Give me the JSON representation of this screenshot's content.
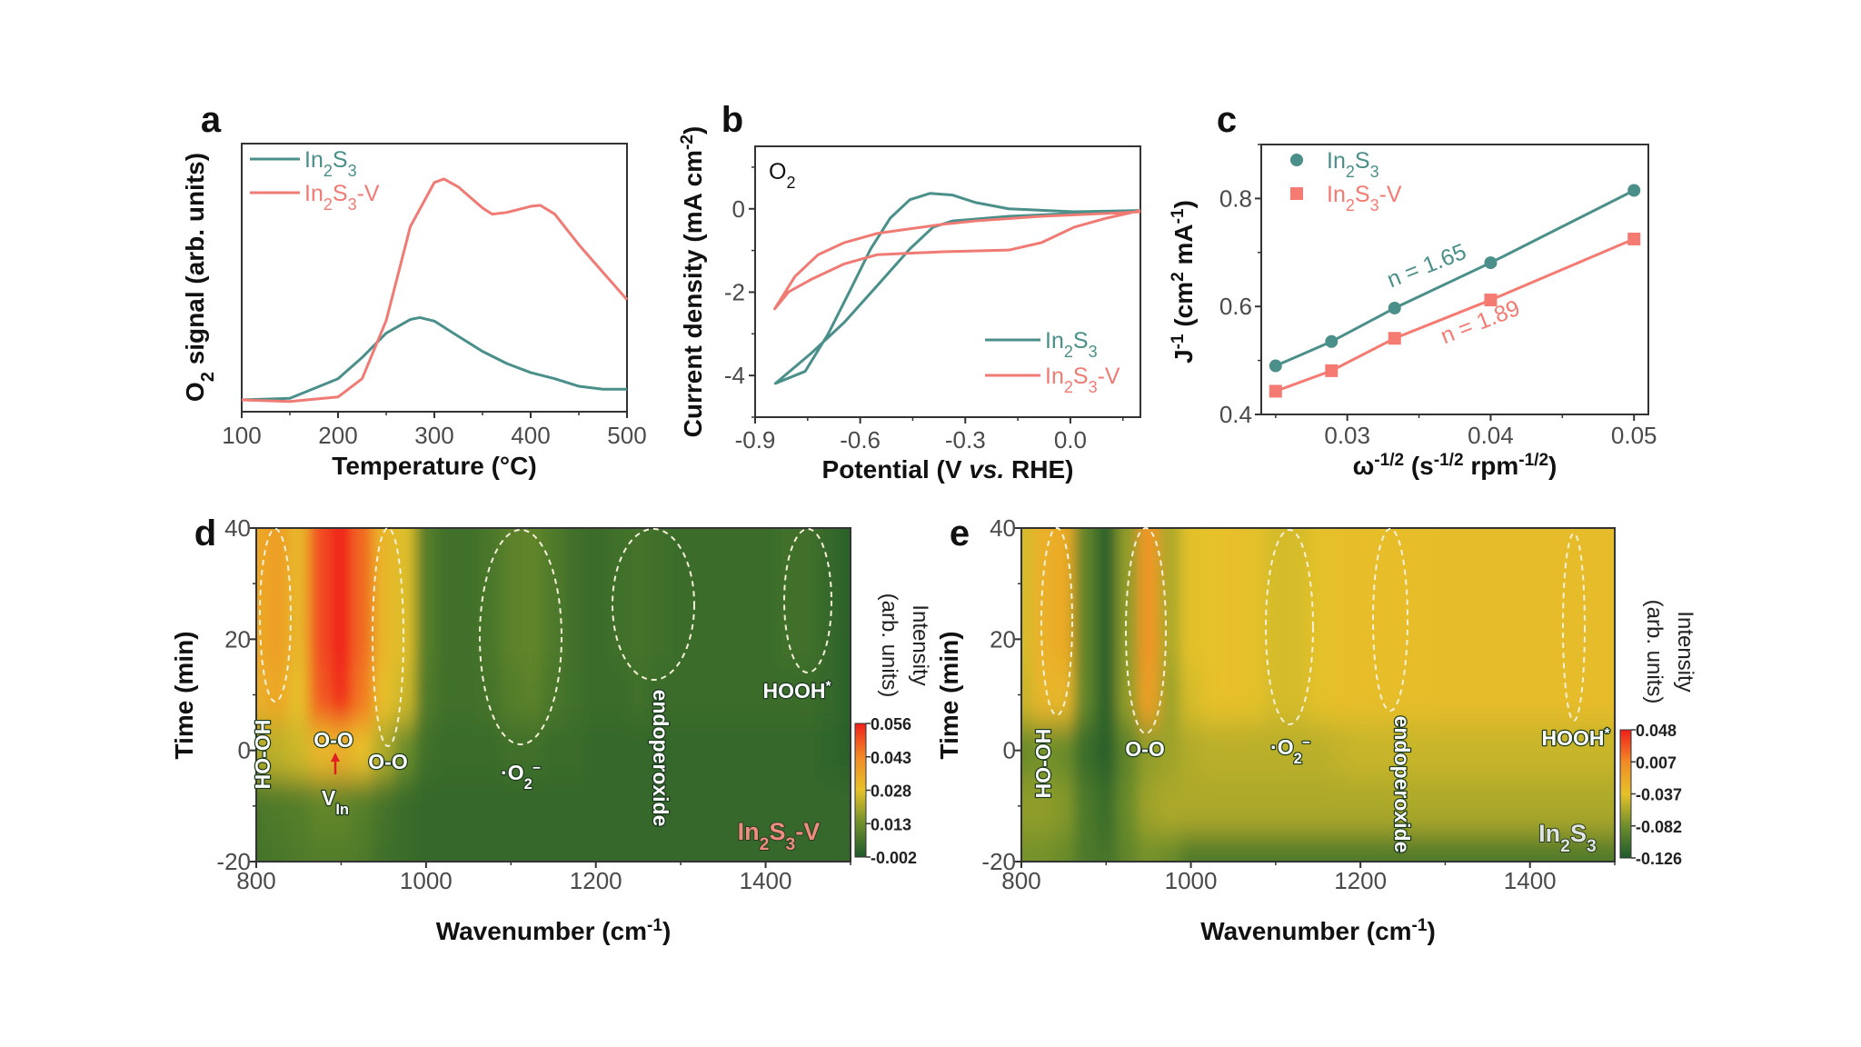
{
  "figure": {
    "panel_labels": [
      "a",
      "b",
      "c",
      "d",
      "e"
    ]
  },
  "colors": {
    "In2S3": "#4a8f8a",
    "In2S3-V": "#f07a74"
  },
  "chart_data": [
    {
      "panel": "a",
      "type": "line",
      "xlabel": "Temperature (°C)",
      "ylabel": "O2 signal (arb. units)",
      "xlim": [
        100,
        500
      ],
      "ylim": [
        0,
        1
      ],
      "xticks": [
        "100",
        "200",
        "300",
        "400",
        "500"
      ],
      "yticks": [],
      "grid": false,
      "legend": "top-left",
      "series": [
        {
          "name": "In2S3",
          "color": "#4a8f8a",
          "x": [
            100,
            150,
            200,
            225,
            250,
            275,
            285,
            300,
            325,
            350,
            375,
            400,
            425,
            450,
            475,
            500
          ],
          "y": [
            0.044,
            0.05,
            0.123,
            0.202,
            0.293,
            0.344,
            0.351,
            0.338,
            0.281,
            0.225,
            0.18,
            0.146,
            0.123,
            0.095,
            0.084,
            0.084
          ]
        },
        {
          "name": "In2S3-V",
          "color": "#f07a74",
          "x": [
            100,
            150,
            200,
            225,
            250,
            275,
            300,
            310,
            325,
            350,
            360,
            375,
            400,
            410,
            425,
            450,
            475,
            500
          ],
          "y": [
            0.044,
            0.038,
            0.055,
            0.123,
            0.34,
            0.69,
            0.855,
            0.868,
            0.838,
            0.76,
            0.737,
            0.743,
            0.766,
            0.77,
            0.737,
            0.623,
            0.52,
            0.418
          ]
        }
      ]
    },
    {
      "panel": "b",
      "type": "line",
      "xlabel": "Potential (V vs. RHE)",
      "ylabel": "Current density (mA cm-2)",
      "xlim": [
        -0.9,
        0.2
      ],
      "ylim": [
        -5,
        1.5
      ],
      "xticks": [
        "-0.9",
        "-0.6",
        "-0.3",
        "0.0"
      ],
      "yticks": [
        "0",
        "-2",
        "-4"
      ],
      "annotation": "O2",
      "grid": false,
      "legend": "bottom-right",
      "series": [
        {
          "name": "In2S3",
          "color": "#4a8f8a",
          "x": [
            0.2,
            0.011,
            -0.176,
            -0.27,
            -0.336,
            -0.401,
            -0.458,
            -0.514,
            -0.57,
            -0.626,
            -0.692,
            -0.757,
            -0.842,
            -0.739,
            -0.645,
            -0.551,
            -0.458,
            -0.392,
            -0.336,
            -0.176,
            0.011,
            0.2
          ],
          "y": [
            -0.04,
            -0.07,
            0.0,
            0.15,
            0.33,
            0.37,
            0.22,
            -0.22,
            -0.96,
            -1.91,
            -3.01,
            -3.9,
            -4.19,
            -3.46,
            -2.72,
            -1.84,
            -0.96,
            -0.44,
            -0.29,
            -0.18,
            -0.11,
            -0.06
          ]
        },
        {
          "name": "In2S3-V",
          "color": "#f07a74",
          "x": [
            0.2,
            0.105,
            0.011,
            -0.082,
            -0.176,
            -0.364,
            -0.551,
            -0.645,
            -0.739,
            -0.804,
            -0.844,
            -0.786,
            -0.72,
            -0.645,
            -0.551,
            -0.458,
            -0.364,
            -0.27,
            -0.082,
            0.105,
            0.2
          ],
          "y": [
            -0.04,
            -0.22,
            -0.44,
            -0.81,
            -0.99,
            -1.03,
            -1.1,
            -1.32,
            -1.69,
            -1.99,
            -2.4,
            -1.62,
            -1.1,
            -0.81,
            -0.59,
            -0.48,
            -0.37,
            -0.29,
            -0.18,
            -0.11,
            -0.07
          ]
        }
      ]
    },
    {
      "panel": "c",
      "type": "scatter",
      "xlabel": "ω-1/2 (s-1/2 rpm-1/2)",
      "ylabel": "J-1 (cm2 mA-1)",
      "xlim": [
        0.024,
        0.051
      ],
      "ylim": [
        0.4,
        0.9
      ],
      "xticks": [
        "0.03",
        "0.04",
        "0.05"
      ],
      "yticks": [
        "0.4",
        "0.6",
        "0.8"
      ],
      "grid": false,
      "legend": "top-left",
      "series": [
        {
          "name": "In2S3",
          "color": "#4a8f8a",
          "marker": "circle",
          "fit_label": "n = 1.65",
          "x": [
            0.025,
            0.0289,
            0.0333,
            0.04,
            0.05
          ],
          "y": [
            0.49,
            0.535,
            0.597,
            0.681,
            0.815
          ]
        },
        {
          "name": "In2S3-V",
          "color": "#f47a72",
          "marker": "square",
          "fit_label": "n = 1.89",
          "x": [
            0.025,
            0.0289,
            0.0333,
            0.04,
            0.05
          ],
          "y": [
            0.443,
            0.481,
            0.541,
            0.612,
            0.725
          ]
        }
      ]
    },
    {
      "panel": "d",
      "type": "heatmap",
      "xlabel": "Wavenumber (cm-1)",
      "ylabel": "Time (min)",
      "xlim": [
        800,
        1500
      ],
      "ylim": [
        -20,
        40
      ],
      "xticks": [
        "800",
        "1000",
        "1200",
        "1400"
      ],
      "yticks": [
        "-20",
        "0",
        "20",
        "40"
      ],
      "colorbar": {
        "label_lines": [
          "Intensity",
          "(arb. units)"
        ],
        "ticks": [
          "0.056",
          "0.043",
          "0.028",
          "0.013",
          "-0.002"
        ],
        "range": [
          -0.002,
          0.056
        ]
      },
      "colormap": [
        "#1e5a2c",
        "#6e8e2c",
        "#e6c22a",
        "#f28a26",
        "#f0201c"
      ],
      "annotations": [
        "HO-OH",
        "O-O",
        "O-O",
        "·O2−",
        "endoperoxide",
        "HOOH*"
      ],
      "marker_label": "VIn",
      "sample_label": "In2S3-V",
      "x": [
        800,
        825,
        850,
        875,
        900,
        925,
        950,
        975,
        1000,
        1025,
        1050,
        1075,
        1100,
        1125,
        1150,
        1175,
        1200,
        1225,
        1250,
        1275,
        1300,
        1325,
        1350,
        1375,
        1400,
        1425,
        1450,
        1475,
        1500
      ],
      "y": [
        -20,
        -10,
        0,
        10,
        20,
        30,
        40
      ],
      "z": [
        [
          0.005,
          0.006,
          0.007,
          0.008,
          0.008,
          0.007,
          0.004,
          0.003,
          0.002,
          0.002,
          0.002,
          0.002,
          0.002,
          0.002,
          0.002,
          0.002,
          0.002,
          0.002,
          0.002,
          0.002,
          0.002,
          0.002,
          0.002,
          0.002,
          0.002,
          0.002,
          0.002,
          0.002,
          0.002
        ],
        [
          0.006,
          0.007,
          0.008,
          0.01,
          0.01,
          0.008,
          0.005,
          0.003,
          0.002,
          0.002,
          0.002,
          0.002,
          0.002,
          0.002,
          0.002,
          0.002,
          0.002,
          0.002,
          0.002,
          0.002,
          0.002,
          0.002,
          0.002,
          0.002,
          0.002,
          0.002,
          0.002,
          0.002,
          0.002
        ],
        [
          0.02,
          0.022,
          0.024,
          0.03,
          0.032,
          0.028,
          0.02,
          0.012,
          0.004,
          0.003,
          0.003,
          0.003,
          0.004,
          0.004,
          0.003,
          0.003,
          0.002,
          0.002,
          0.002,
          0.002,
          0.002,
          0.002,
          0.002,
          0.002,
          0.002,
          0.002,
          0.002,
          0.001,
          0.0
        ],
        [
          0.032,
          0.034,
          0.028,
          0.048,
          0.054,
          0.044,
          0.028,
          0.024,
          0.007,
          0.004,
          0.004,
          0.005,
          0.008,
          0.009,
          0.006,
          0.004,
          0.003,
          0.003,
          0.004,
          0.003,
          0.003,
          0.003,
          0.003,
          0.003,
          0.003,
          0.003,
          0.003,
          0.002,
          0.0
        ],
        [
          0.034,
          0.036,
          0.03,
          0.05,
          0.056,
          0.046,
          0.03,
          0.026,
          0.008,
          0.004,
          0.004,
          0.006,
          0.009,
          0.01,
          0.007,
          0.004,
          0.003,
          0.004,
          0.005,
          0.004,
          0.003,
          0.003,
          0.003,
          0.003,
          0.003,
          0.004,
          0.004,
          0.002,
          0.0
        ],
        [
          0.034,
          0.036,
          0.03,
          0.05,
          0.056,
          0.046,
          0.03,
          0.026,
          0.008,
          0.004,
          0.004,
          0.006,
          0.009,
          0.01,
          0.007,
          0.004,
          0.003,
          0.004,
          0.005,
          0.004,
          0.003,
          0.003,
          0.003,
          0.003,
          0.003,
          0.004,
          0.004,
          0.002,
          0.0
        ],
        [
          0.034,
          0.036,
          0.03,
          0.05,
          0.056,
          0.046,
          0.03,
          0.026,
          0.008,
          0.004,
          0.004,
          0.006,
          0.009,
          0.01,
          0.007,
          0.004,
          0.003,
          0.004,
          0.005,
          0.004,
          0.003,
          0.003,
          0.003,
          0.003,
          0.003,
          0.004,
          0.004,
          0.002,
          0.0
        ]
      ]
    },
    {
      "panel": "e",
      "type": "heatmap",
      "xlabel": "Wavenumber (cm-1)",
      "ylabel": "Time (min)",
      "xlim": [
        800,
        1500
      ],
      "ylim": [
        -20,
        40
      ],
      "xticks": [
        "800",
        "1000",
        "1200",
        "1400"
      ],
      "yticks": [
        "-20",
        "0",
        "20",
        "40"
      ],
      "colorbar": {
        "label_lines": [
          "Intensity",
          "(arb. units)"
        ],
        "ticks": [
          "0.048",
          "0.007",
          "-0.037",
          "-0.082",
          "-0.126"
        ],
        "range": [
          -0.126,
          0.048
        ]
      },
      "colormap": [
        "#1e5a2c",
        "#6e8e2c",
        "#e6c22a",
        "#f28a26",
        "#f0201c"
      ],
      "annotations": [
        "HO-OH",
        "O-O",
        "·O2−",
        "endoperoxide",
        "HOOH*"
      ],
      "sample_label": "In2S3",
      "x": [
        800,
        825,
        850,
        875,
        900,
        925,
        950,
        975,
        1000,
        1025,
        1050,
        1075,
        1100,
        1125,
        1150,
        1175,
        1200,
        1225,
        1250,
        1275,
        1300,
        1325,
        1350,
        1375,
        1400,
        1425,
        1450,
        1475,
        1500
      ],
      "y": [
        -20,
        -10,
        0,
        10,
        20,
        30,
        40
      ],
      "z": [
        [
          -0.08,
          -0.08,
          -0.085,
          -0.1,
          -0.105,
          -0.09,
          -0.08,
          -0.085,
          -0.1,
          -0.1,
          -0.1,
          -0.1,
          -0.1,
          -0.1,
          -0.1,
          -0.1,
          -0.1,
          -0.1,
          -0.1,
          -0.1,
          -0.1,
          -0.1,
          -0.1,
          -0.1,
          -0.1,
          -0.1,
          -0.1,
          -0.1,
          -0.1
        ],
        [
          -0.07,
          -0.07,
          -0.075,
          -0.1,
          -0.11,
          -0.085,
          -0.065,
          -0.06,
          -0.06,
          -0.06,
          -0.06,
          -0.06,
          -0.06,
          -0.06,
          -0.06,
          -0.06,
          -0.06,
          -0.06,
          -0.06,
          -0.06,
          -0.06,
          -0.06,
          -0.06,
          -0.06,
          -0.06,
          -0.06,
          -0.06,
          -0.06,
          -0.06
        ],
        [
          -0.085,
          -0.08,
          -0.085,
          -0.11,
          -0.12,
          -0.09,
          -0.07,
          -0.065,
          -0.058,
          -0.055,
          -0.055,
          -0.055,
          -0.055,
          -0.055,
          -0.055,
          -0.052,
          -0.05,
          -0.05,
          -0.05,
          -0.05,
          -0.05,
          -0.05,
          -0.05,
          -0.05,
          -0.05,
          -0.05,
          -0.05,
          -0.05,
          -0.05
        ],
        [
          -0.05,
          -0.03,
          -0.03,
          -0.09,
          -0.12,
          -0.07,
          -0.012,
          -0.065,
          -0.045,
          -0.038,
          -0.037,
          -0.04,
          -0.045,
          -0.045,
          -0.04,
          -0.037,
          -0.036,
          -0.036,
          -0.035,
          -0.035,
          -0.034,
          -0.034,
          -0.034,
          -0.034,
          -0.034,
          -0.034,
          -0.034,
          -0.034,
          -0.034
        ],
        [
          -0.045,
          -0.025,
          -0.02,
          -0.09,
          -0.12,
          -0.07,
          -0.005,
          -0.06,
          -0.04,
          -0.038,
          -0.037,
          -0.04,
          -0.045,
          -0.045,
          -0.04,
          -0.037,
          -0.036,
          -0.036,
          -0.035,
          -0.035,
          -0.034,
          -0.034,
          -0.034,
          -0.034,
          -0.034,
          -0.034,
          -0.034,
          -0.034,
          -0.034
        ],
        [
          -0.045,
          -0.025,
          -0.02,
          -0.09,
          -0.12,
          -0.07,
          -0.005,
          -0.06,
          -0.04,
          -0.038,
          -0.037,
          -0.04,
          -0.045,
          -0.045,
          -0.04,
          -0.037,
          -0.036,
          -0.036,
          -0.035,
          -0.035,
          -0.034,
          -0.034,
          -0.034,
          -0.034,
          -0.034,
          -0.034,
          -0.034,
          -0.034,
          -0.034
        ],
        [
          -0.045,
          -0.025,
          -0.02,
          -0.09,
          -0.12,
          -0.07,
          -0.005,
          -0.06,
          -0.04,
          -0.038,
          -0.037,
          -0.04,
          -0.045,
          -0.045,
          -0.04,
          -0.037,
          -0.036,
          -0.036,
          -0.035,
          -0.035,
          -0.034,
          -0.034,
          -0.034,
          -0.034,
          -0.034,
          -0.034,
          -0.034,
          -0.034,
          -0.034
        ]
      ]
    }
  ]
}
